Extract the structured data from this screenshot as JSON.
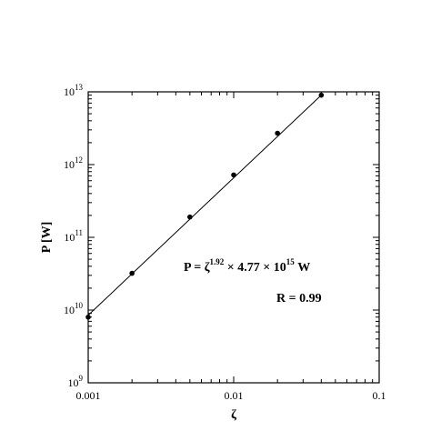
{
  "chart_data": {
    "type": "scatter",
    "xlabel": "ζ",
    "ylabel": "P [W]",
    "x_scale": "log",
    "y_scale": "log",
    "xlim": [
      0.001,
      0.1
    ],
    "ylim": [
      1000000000.0,
      10000000000000.0
    ],
    "x_ticks": [
      "0.001",
      "0.01",
      "0.1"
    ],
    "y_ticks": [
      {
        "value": 1000000000.0,
        "base": "10",
        "exp": "9"
      },
      {
        "value": 10000000000.0,
        "base": "10",
        "exp": "10"
      },
      {
        "value": 100000000000.0,
        "base": "10",
        "exp": "11"
      },
      {
        "value": 1000000000000.0,
        "base": "10",
        "exp": "12"
      },
      {
        "value": 10000000000000.0,
        "base": "10",
        "exp": "13"
      }
    ],
    "series": [
      {
        "points": [
          {
            "x": 0.001,
            "y": 8000000000.0
          },
          {
            "x": 0.002,
            "y": 32000000000.0
          },
          {
            "x": 0.005,
            "y": 190000000000.0
          },
          {
            "x": 0.01,
            "y": 720000000000.0
          },
          {
            "x": 0.02,
            "y": 2700000000000.0
          },
          {
            "x": 0.04,
            "y": 9000000000000.0
          }
        ]
      }
    ],
    "fit": {
      "x_range": [
        0.001,
        0.04
      ],
      "y_range": [
        8500000000.0,
        9000000000000.0
      ]
    },
    "annotations": {
      "fit_equation": {
        "lhs": "P = ζ",
        "exponent1": "1.92",
        "mid": " × 4.77 × 10",
        "exponent2": "15",
        "unit": " W"
      },
      "correlation": "R = 0.99"
    },
    "grid": false
  }
}
